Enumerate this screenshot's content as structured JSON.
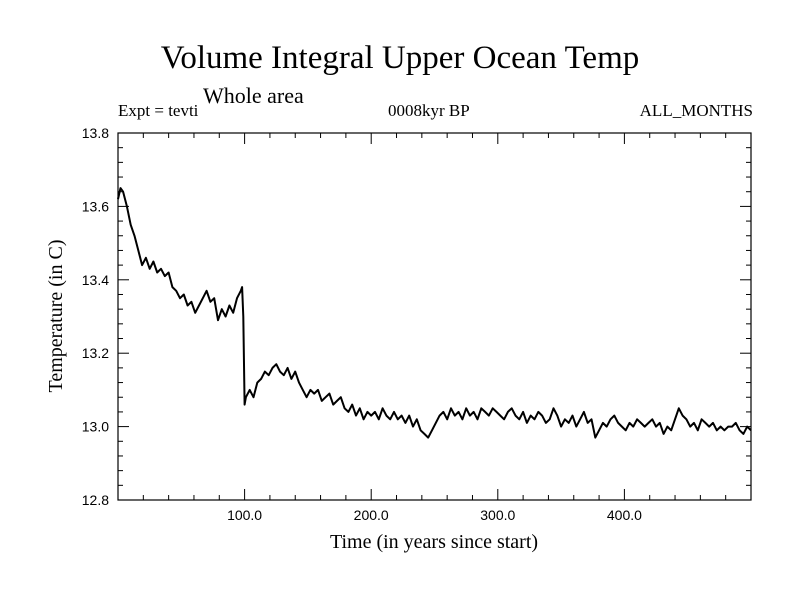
{
  "chart_data": {
    "type": "line",
    "title": "Volume Integral Upper Ocean Temp",
    "subtitle": "Whole area",
    "header_left": "Expt = tevti",
    "header_center": "0008kyr BP",
    "header_right": "ALL_MONTHS",
    "xlabel": "Time (in years since start)",
    "ylabel": "Temperature (in C)",
    "xlim": [
      0,
      500
    ],
    "ylim": [
      12.8,
      13.8
    ],
    "x_ticks": [
      100,
      200,
      300,
      400
    ],
    "x_tick_labels": [
      "100.0",
      "200.0",
      "300.0",
      "400.0"
    ],
    "y_ticks": [
      12.8,
      13.0,
      13.2,
      13.4,
      13.6,
      13.8
    ],
    "y_tick_labels": [
      "12.8",
      "13.0",
      "13.2",
      "13.4",
      "13.6",
      "13.8"
    ],
    "grid": false,
    "line_color": "#000000",
    "series": [
      {
        "x": [
          0,
          2,
          4,
          7,
          10,
          13,
          16,
          19,
          22,
          25,
          28,
          31,
          34,
          37,
          40,
          43,
          46,
          49,
          52,
          55,
          58,
          61,
          64,
          67,
          70,
          73,
          76,
          79,
          82,
          85,
          88,
          91,
          94,
          97,
          98,
          99,
          100,
          101,
          104,
          107,
          110,
          113,
          116,
          119,
          122,
          125,
          128,
          131,
          134,
          137,
          140,
          143,
          146,
          149,
          152,
          155,
          158,
          161,
          164,
          167,
          170,
          173,
          176,
          179,
          182,
          185,
          188,
          191,
          194,
          197,
          200,
          203,
          206,
          209,
          212,
          215,
          218,
          221,
          224,
          227,
          230,
          233,
          236,
          239,
          242,
          245,
          248,
          251,
          254,
          257,
          260,
          263,
          266,
          269,
          272,
          275,
          278,
          281,
          284,
          287,
          290,
          293,
          296,
          299,
          302,
          305,
          308,
          311,
          314,
          317,
          320,
          323,
          326,
          329,
          332,
          335,
          338,
          341,
          344,
          347,
          350,
          353,
          356,
          359,
          362,
          365,
          368,
          371,
          374,
          377,
          380,
          383,
          386,
          389,
          392,
          395,
          398,
          401,
          404,
          407,
          410,
          413,
          416,
          419,
          422,
          425,
          428,
          431,
          434,
          437,
          440,
          443,
          446,
          449,
          452,
          455,
          458,
          461,
          464,
          467,
          470,
          473,
          476,
          479,
          482,
          485,
          488,
          491,
          494,
          497,
          500
        ],
        "y": [
          13.62,
          13.65,
          13.64,
          13.6,
          13.55,
          13.52,
          13.48,
          13.44,
          13.46,
          13.43,
          13.45,
          13.42,
          13.43,
          13.41,
          13.42,
          13.38,
          13.37,
          13.35,
          13.36,
          13.33,
          13.34,
          13.31,
          13.33,
          13.35,
          13.37,
          13.34,
          13.35,
          13.29,
          13.32,
          13.3,
          13.33,
          13.31,
          13.35,
          13.37,
          13.38,
          13.3,
          13.06,
          13.08,
          13.1,
          13.08,
          13.12,
          13.13,
          13.15,
          13.14,
          13.16,
          13.17,
          13.15,
          13.14,
          13.16,
          13.13,
          13.15,
          13.12,
          13.1,
          13.08,
          13.1,
          13.09,
          13.1,
          13.07,
          13.08,
          13.09,
          13.06,
          13.07,
          13.08,
          13.05,
          13.04,
          13.06,
          13.03,
          13.05,
          13.02,
          13.04,
          13.03,
          13.04,
          13.02,
          13.05,
          13.03,
          13.02,
          13.04,
          13.02,
          13.03,
          13.01,
          13.03,
          13.0,
          13.02,
          12.99,
          12.98,
          12.97,
          12.99,
          13.01,
          13.03,
          13.04,
          13.02,
          13.05,
          13.03,
          13.04,
          13.02,
          13.05,
          13.03,
          13.04,
          13.02,
          13.05,
          13.04,
          13.03,
          13.05,
          13.04,
          13.03,
          13.02,
          13.04,
          13.05,
          13.03,
          13.02,
          13.04,
          13.01,
          13.03,
          13.02,
          13.04,
          13.03,
          13.01,
          13.02,
          13.05,
          13.03,
          13.0,
          13.02,
          13.01,
          13.03,
          13.0,
          13.02,
          13.04,
          13.01,
          13.02,
          12.97,
          12.99,
          13.01,
          13.0,
          13.02,
          13.03,
          13.01,
          13.0,
          12.99,
          13.01,
          13.0,
          13.02,
          13.01,
          13.0,
          13.01,
          13.02,
          13.0,
          13.01,
          12.98,
          13.0,
          12.99,
          13.02,
          13.05,
          13.03,
          13.02,
          13.0,
          13.01,
          12.99,
          13.02,
          13.01,
          13.0,
          13.01,
          12.99,
          13.0,
          12.99,
          13.0,
          13.0,
          13.01,
          12.99,
          12.98,
          13.0,
          12.99
        ]
      }
    ]
  }
}
